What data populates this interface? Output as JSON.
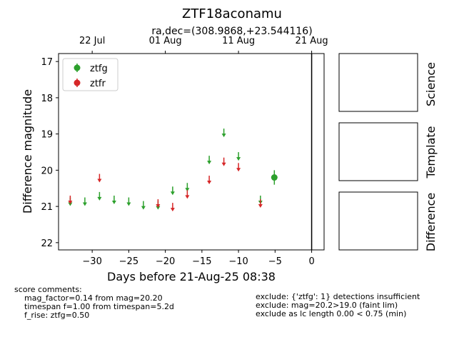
{
  "chart_data": {
    "type": "lightcurve",
    "title": "ZTF18aconamu",
    "top_axis_label": "ra,dec=(308.9868,+23.544116)",
    "x_label": "Days before 21-Aug-25 08:38",
    "y_label": "Difference magnitude",
    "xlim": [
      -34.6,
      1.7
    ],
    "ylim": [
      16.78,
      22.2
    ],
    "y_inverted": true,
    "xticks": [
      {
        "value": -30,
        "label": "−30"
      },
      {
        "value": -25,
        "label": "−25"
      },
      {
        "value": -20,
        "label": "−20"
      },
      {
        "value": -15,
        "label": "−15"
      },
      {
        "value": -10,
        "label": "−10"
      },
      {
        "value": -5,
        "label": "−5"
      },
      0
    ],
    "top_xticks": [
      {
        "value": -30,
        "label": "22 Jul"
      },
      {
        "value": -20,
        "label": "01 Aug"
      },
      {
        "value": -10,
        "label": "11 Aug"
      },
      {
        "value": 0,
        "label": "21 Aug"
      }
    ],
    "yticks": [
      17,
      18,
      19,
      20,
      21,
      22
    ],
    "vline_x": 0,
    "legend_position": "upper left",
    "series": [
      {
        "name": "ztfg",
        "color": "#2ca02c",
        "upper_limits": {
          "x": [
            -33,
            -31,
            -29,
            -27,
            -25,
            -23,
            -21,
            -19,
            -17,
            -14,
            -12,
            -10,
            -7
          ],
          "values": [
            20.85,
            20.85,
            20.7,
            20.8,
            20.85,
            20.95,
            20.95,
            20.55,
            20.45,
            19.7,
            18.95,
            19.6,
            20.8
          ]
        },
        "detections": {
          "x": [
            -5.1
          ],
          "values": [
            20.2
          ],
          "errors": [
            0.2
          ]
        }
      },
      {
        "name": "ztfr",
        "color": "#d62728",
        "upper_limits": {
          "x": [
            -33,
            -29,
            -21,
            -19,
            -17,
            -14,
            -12,
            -10,
            -7
          ],
          "values": [
            20.8,
            20.2,
            20.9,
            21.0,
            20.65,
            20.25,
            19.75,
            19.9,
            20.9
          ]
        },
        "detections": {
          "x": [],
          "values": [],
          "errors": []
        }
      }
    ]
  },
  "panels": [
    "Science",
    "Template",
    "Difference"
  ],
  "score_comments": {
    "title": "score comments:",
    "lines": [
      "mag_factor=0.14 from mag=20.20",
      "timespan f=1.00 from timespan=5.2d",
      "f_rise: ztfg=0.50"
    ]
  },
  "exclude_comments": [
    "exclude: {'ztfg': 1} detections insufficient",
    "exclude: mag=20.2>19.0 (faint lim)",
    "exclude as lc length 0.00 < 0.75 (min)"
  ]
}
